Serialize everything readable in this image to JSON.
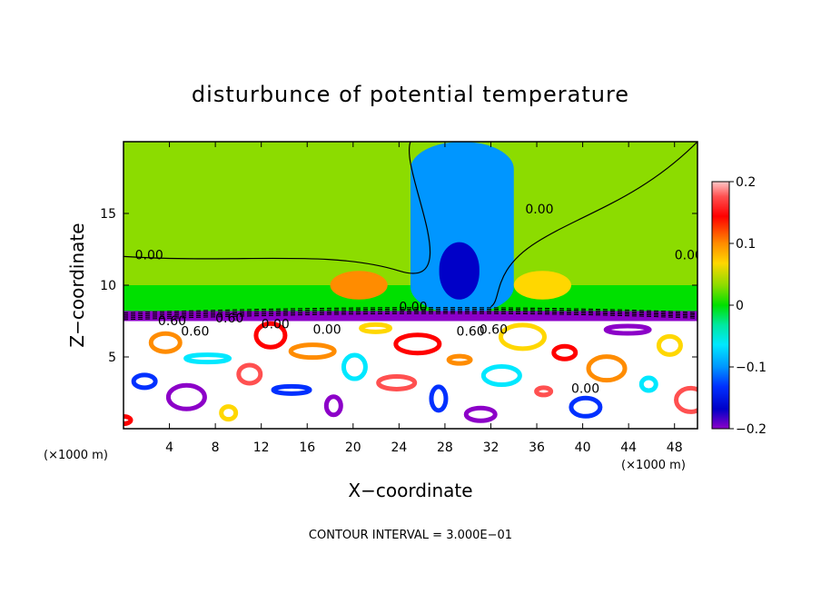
{
  "chart_data": {
    "type": "heatmap",
    "title": "disturbunce of potential temperature",
    "xlabel": "X−coordinate",
    "ylabel": "Z−coordinate",
    "x_unit_left": "(×1000 m)",
    "x_unit_right": "(×1000 m)",
    "xlim": [
      0,
      50
    ],
    "ylim": [
      0,
      20
    ],
    "x_ticks": [
      4,
      8,
      12,
      16,
      20,
      24,
      28,
      32,
      36,
      40,
      44,
      48
    ],
    "x_tick_labels": [
      "4",
      "8",
      "12",
      "16",
      "20",
      "24",
      "28",
      "32",
      "36",
      "40",
      "44",
      "48"
    ],
    "y_ticks": [
      5,
      10,
      15
    ],
    "y_tick_labels": [
      "5",
      "10",
      "15"
    ],
    "colorbar": {
      "range": [
        -0.2,
        0.2
      ],
      "ticks": [
        0.2,
        0.1,
        0,
        -0.1,
        -0.2
      ],
      "tick_labels": [
        "0.2",
        "0.1",
        "0",
        "−0.1",
        "−0.2"
      ]
    },
    "contour_labels": [
      "0.00",
      "0.00",
      "0.00",
      "0.00",
      "0.00",
      "0.60",
      "0.60",
      "0.60",
      "0.60",
      "0.00",
      "0.00",
      "0.60"
    ],
    "footer": "CONTOUR INTERVAL = 3.000E−01",
    "regions": [
      {
        "x": [
          0,
          50
        ],
        "z": [
          8,
          20
        ],
        "value": 0.0
      },
      {
        "x": [
          0,
          50
        ],
        "z": [
          10,
          20
        ],
        "value": 0.02
      },
      {
        "x": [
          25,
          34
        ],
        "z": [
          8,
          20
        ],
        "value": -0.09
      },
      {
        "x": [
          27.5,
          31
        ],
        "z": [
          9,
          13
        ],
        "value": -0.18
      },
      {
        "x": [
          18,
          23
        ],
        "z": [
          9,
          11
        ],
        "value": 0.09
      },
      {
        "x": [
          34,
          39
        ],
        "z": [
          9,
          11
        ],
        "value": 0.07
      },
      {
        "x": [
          0,
          50
        ],
        "z": [
          7.5,
          8.2
        ],
        "value": -0.2
      },
      {
        "x": [
          0,
          50
        ],
        "z": [
          0,
          7.5
        ],
        "value": 0.2
      }
    ]
  }
}
